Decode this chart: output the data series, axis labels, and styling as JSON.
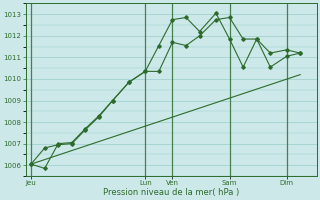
{
  "xlabel": "Pression niveau de la mer( hPa )",
  "background_color": "#cce8e8",
  "grid_color": "#99cccc",
  "line_color": "#2d6b2d",
  "ylim": [
    1005.5,
    1013.5
  ],
  "yticks": [
    1006,
    1007,
    1008,
    1009,
    1010,
    1011,
    1012,
    1013
  ],
  "day_labels": [
    "Jeu",
    "Lun",
    "Ven",
    "Sam",
    "Dim"
  ],
  "day_positions": [
    0.0,
    0.42,
    0.52,
    0.73,
    0.94
  ],
  "series1_x": [
    0.0,
    0.05,
    0.1,
    0.15,
    0.2,
    0.25,
    0.3,
    0.36,
    0.42,
    0.47,
    0.52,
    0.57,
    0.62,
    0.68,
    0.73,
    0.78,
    0.83,
    0.88,
    0.94,
    0.99
  ],
  "series1_y": [
    1006.05,
    1005.85,
    1007.0,
    1007.05,
    1007.7,
    1008.3,
    1009.0,
    1009.85,
    1010.35,
    1010.35,
    1011.7,
    1011.55,
    1012.0,
    1012.75,
    1012.85,
    1011.85,
    1011.85,
    1010.55,
    1011.05,
    1011.2
  ],
  "series2_x": [
    0.0,
    0.05,
    0.1,
    0.15,
    0.2,
    0.25,
    0.3,
    0.36,
    0.42,
    0.47,
    0.52,
    0.57,
    0.62,
    0.68,
    0.73,
    0.78,
    0.83,
    0.88,
    0.94,
    0.99
  ],
  "series2_y": [
    1006.05,
    1006.8,
    1006.95,
    1007.0,
    1007.65,
    1008.25,
    1009.0,
    1009.85,
    1010.35,
    1011.55,
    1012.75,
    1012.85,
    1012.2,
    1013.05,
    1011.85,
    1010.55,
    1011.85,
    1011.2,
    1011.35,
    1011.2
  ],
  "series3_x": [
    0.0,
    0.99
  ],
  "series3_y": [
    1006.05,
    1010.2
  ],
  "xlim": [
    -0.02,
    1.05
  ]
}
